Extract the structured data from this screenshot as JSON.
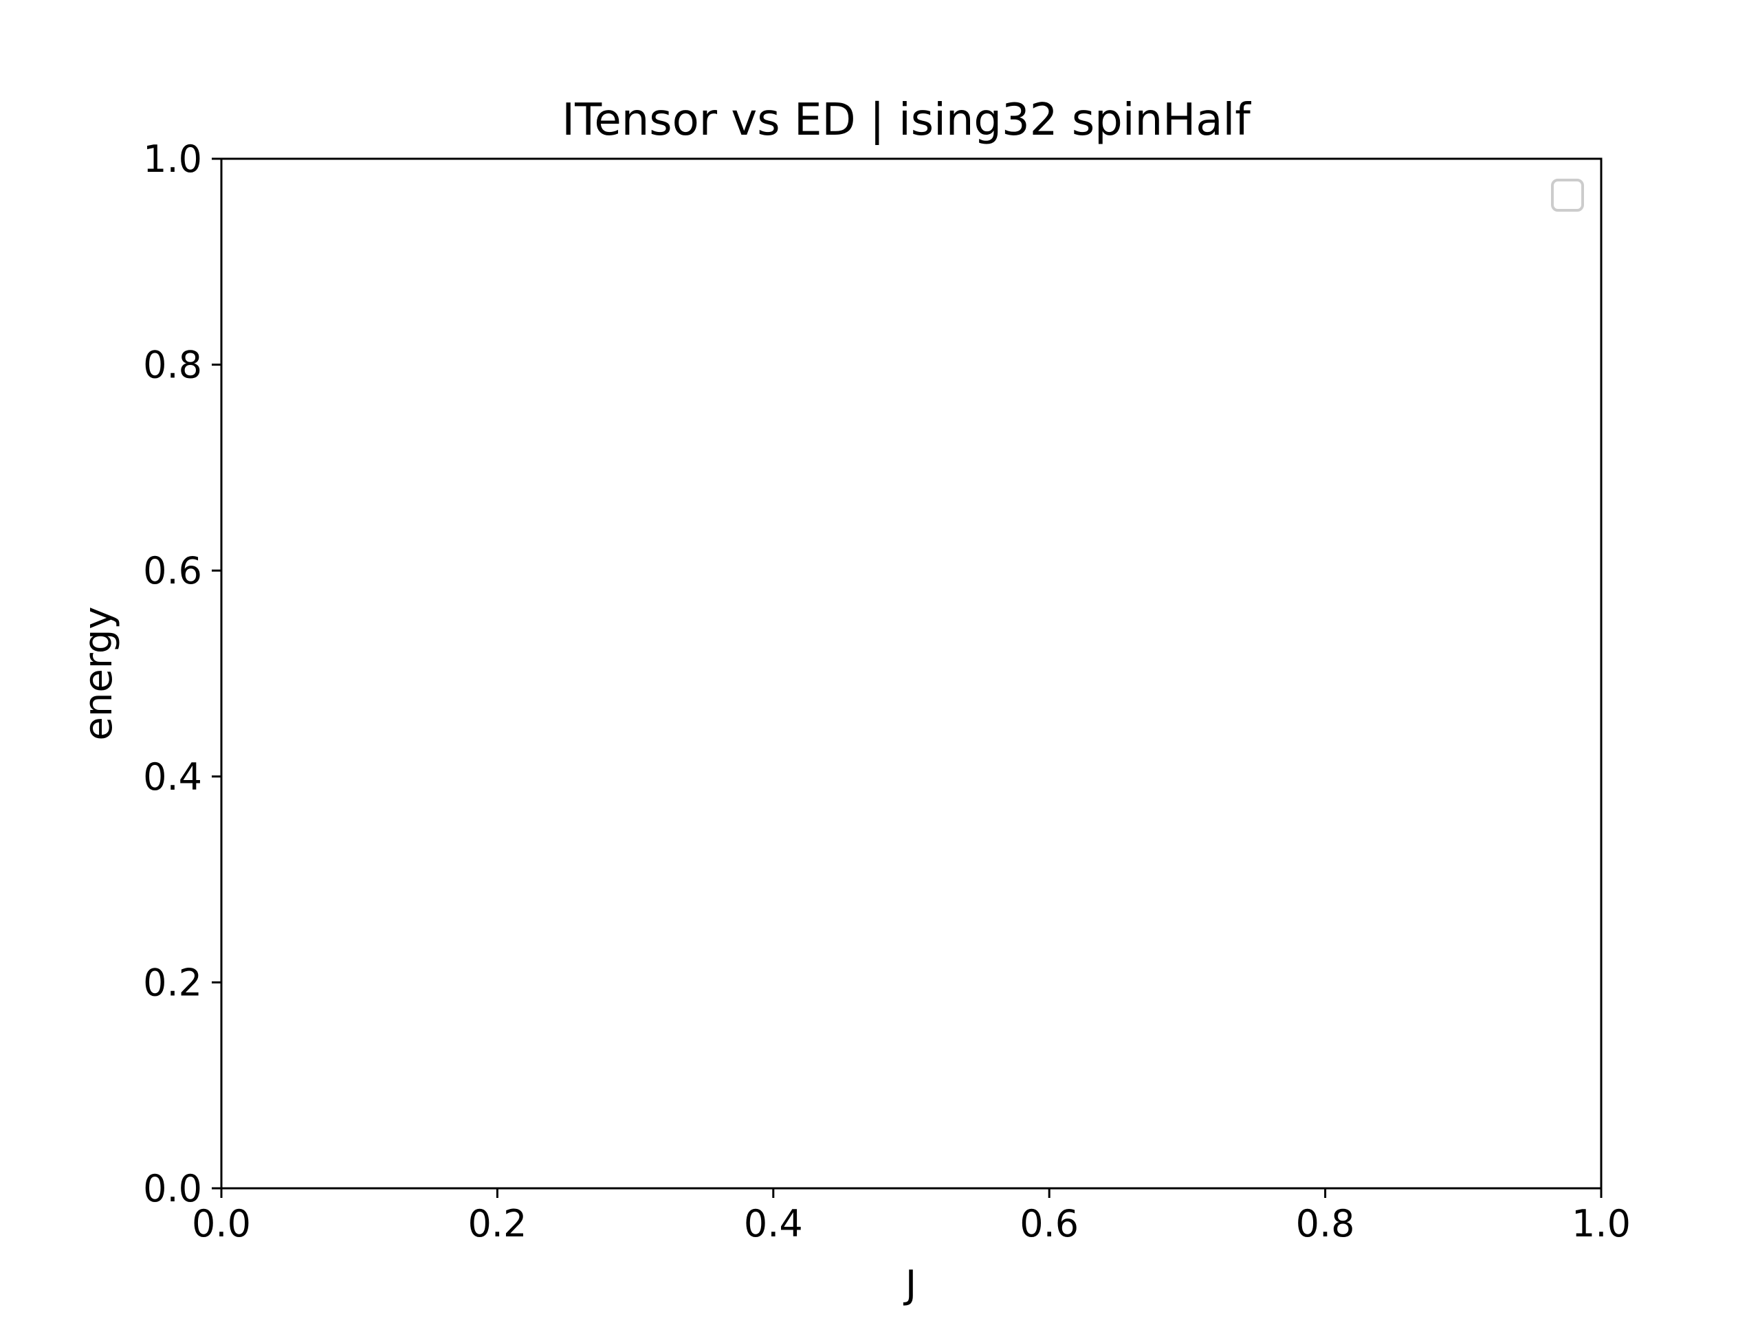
{
  "chart_data": {
    "type": "line",
    "title": "ITensor vs ED | ising32 spinHalf",
    "xlabel": "J",
    "ylabel": "energy",
    "xlim": [
      0.0,
      1.0
    ],
    "ylim": [
      0.0,
      1.0
    ],
    "x_ticks": [
      "0.0",
      "0.2",
      "0.4",
      "0.6",
      "0.8",
      "1.0"
    ],
    "y_ticks": [
      "0.0",
      "0.2",
      "0.4",
      "0.6",
      "0.8",
      "1.0"
    ],
    "series": [],
    "legend": {
      "position": "top-right",
      "entries": []
    },
    "grid": false
  }
}
